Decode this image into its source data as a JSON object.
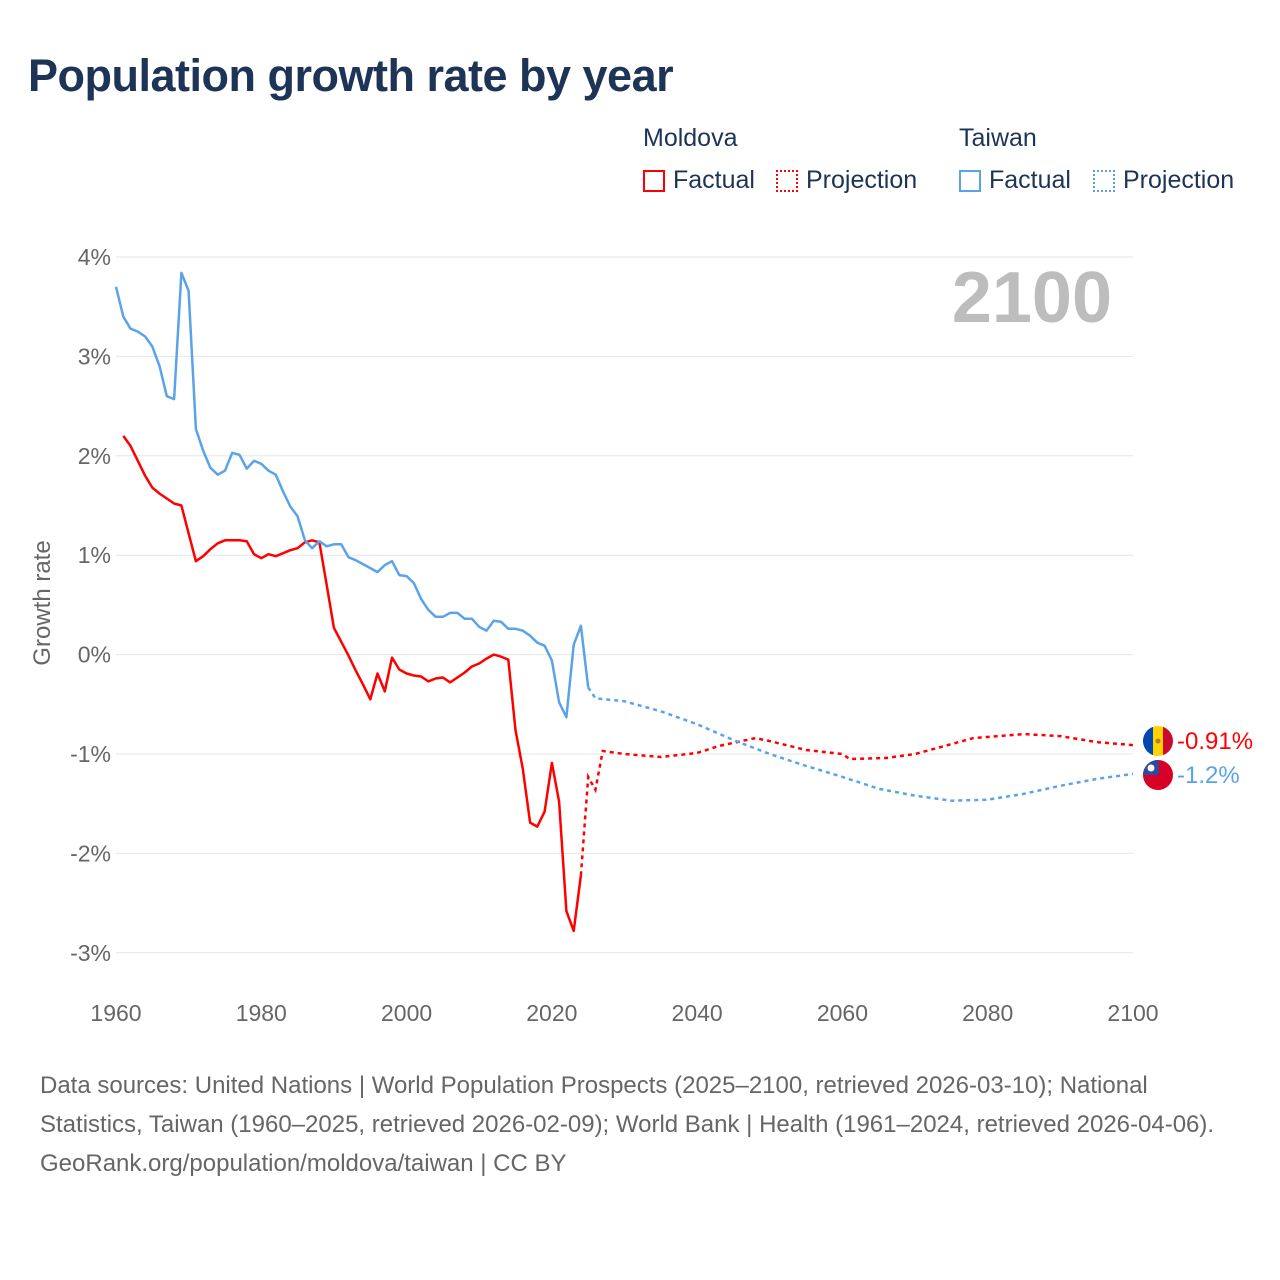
{
  "title": "Population growth rate by year",
  "legend": {
    "groups": [
      {
        "name": "Moldova",
        "color": "#ff0000",
        "factual": "Factual",
        "projection": "Projection"
      },
      {
        "name": "Taiwan",
        "color": "#5ba3e8",
        "factual": "Factual",
        "projection": "Projection"
      }
    ]
  },
  "footer": {
    "sources": "Data sources: United Nations | World Population Prospects (2025–2100, retrieved 2026-03-10); National Statistics, Taiwan (1960–2025, retrieved 2026-02-09); World Bank | Health (1961–2024, retrieved 2026-04-06).",
    "credit": "GeoRank.org/population/moldova/taiwan | CC BY"
  },
  "chart_data": {
    "type": "line",
    "title": "Population growth rate by year",
    "ylabel": "Growth rate",
    "xlabel": "",
    "year_watermark": "2100",
    "xlim": [
      1960,
      2100
    ],
    "ylim": [
      -3.3,
      4
    ],
    "xticks": [
      "1960",
      "1980",
      "2000",
      "2020",
      "2040",
      "2060",
      "2080",
      "2100"
    ],
    "yticks": [
      {
        "v": 4,
        "label": "4%"
      },
      {
        "v": 3,
        "label": "3%"
      },
      {
        "v": 2,
        "label": "2%"
      },
      {
        "v": 1,
        "label": "1%"
      },
      {
        "v": 0,
        "label": "0%"
      },
      {
        "v": -1,
        "label": "-1%"
      },
      {
        "v": -2,
        "label": "-2%"
      },
      {
        "v": -3,
        "label": "-3%"
      }
    ],
    "grid": true,
    "series": [
      {
        "name": "Moldova",
        "color": "#ff0000",
        "end_label": "-0.91%",
        "factual": [
          [
            1961,
            2.2
          ],
          [
            1962,
            2.1
          ],
          [
            1963,
            1.95
          ],
          [
            1964,
            1.8
          ],
          [
            1965,
            1.68
          ],
          [
            1966,
            1.62
          ],
          [
            1967,
            1.57
          ],
          [
            1968,
            1.52
          ],
          [
            1969,
            1.5
          ],
          [
            1970,
            1.22
          ],
          [
            1971,
            0.94
          ],
          [
            1972,
            0.99
          ],
          [
            1973,
            1.06
          ],
          [
            1974,
            1.12
          ],
          [
            1975,
            1.15
          ],
          [
            1976,
            1.15
          ],
          [
            1977,
            1.15
          ],
          [
            1978,
            1.14
          ],
          [
            1979,
            1.01
          ],
          [
            1980,
            0.97
          ],
          [
            1981,
            1.01
          ],
          [
            1982,
            0.99
          ],
          [
            1983,
            1.02
          ],
          [
            1984,
            1.05
          ],
          [
            1985,
            1.07
          ],
          [
            1986,
            1.13
          ],
          [
            1987,
            1.15
          ],
          [
            1988,
            1.13
          ],
          [
            1989,
            0.7
          ],
          [
            1990,
            0.27
          ],
          [
            1991,
            0.13
          ],
          [
            1992,
            -0.01
          ],
          [
            1993,
            -0.16
          ],
          [
            1994,
            -0.3
          ],
          [
            1995,
            -0.45
          ],
          [
            1996,
            -0.19
          ],
          [
            1997,
            -0.37
          ],
          [
            1998,
            -0.03
          ],
          [
            1999,
            -0.15
          ],
          [
            2000,
            -0.19
          ],
          [
            2001,
            -0.21
          ],
          [
            2002,
            -0.22
          ],
          [
            2003,
            -0.27
          ],
          [
            2004,
            -0.24
          ],
          [
            2005,
            -0.23
          ],
          [
            2006,
            -0.28
          ],
          [
            2007,
            -0.23
          ],
          [
            2008,
            -0.18
          ],
          [
            2009,
            -0.12
          ],
          [
            2010,
            -0.09
          ],
          [
            2011,
            -0.04
          ],
          [
            2012,
            0.0
          ],
          [
            2013,
            -0.02
          ],
          [
            2014,
            -0.05
          ],
          [
            2015,
            -0.76
          ],
          [
            2016,
            -1.15
          ],
          [
            2017,
            -1.69
          ],
          [
            2018,
            -1.73
          ],
          [
            2019,
            -1.58
          ],
          [
            2020,
            -1.09
          ],
          [
            2021,
            -1.48
          ],
          [
            2022,
            -2.58
          ],
          [
            2023,
            -2.78
          ],
          [
            2024,
            -2.22
          ]
        ],
        "projection": [
          [
            2024,
            -2.22
          ],
          [
            2025,
            -1.23
          ],
          [
            2026,
            -1.36
          ],
          [
            2027,
            -0.97
          ],
          [
            2030,
            -1.0
          ],
          [
            2035,
            -1.03
          ],
          [
            2040,
            -0.99
          ],
          [
            2043,
            -0.92
          ],
          [
            2048,
            -0.84
          ],
          [
            2050,
            -0.87
          ],
          [
            2055,
            -0.96
          ],
          [
            2060,
            -1.0
          ],
          [
            2061,
            -1.05
          ],
          [
            2066,
            -1.04
          ],
          [
            2070,
            -1.0
          ],
          [
            2075,
            -0.9
          ],
          [
            2078,
            -0.84
          ],
          [
            2085,
            -0.8
          ],
          [
            2090,
            -0.82
          ],
          [
            2095,
            -0.88
          ],
          [
            2100,
            -0.91
          ]
        ]
      },
      {
        "name": "Taiwan",
        "color": "#5ba3e8",
        "end_label": "-1.2%",
        "factual": [
          [
            1960,
            3.7
          ],
          [
            1961,
            3.4
          ],
          [
            1962,
            3.28
          ],
          [
            1963,
            3.25
          ],
          [
            1964,
            3.2
          ],
          [
            1965,
            3.1
          ],
          [
            1966,
            2.9
          ],
          [
            1967,
            2.6
          ],
          [
            1968,
            2.57
          ],
          [
            1969,
            3.84
          ],
          [
            1970,
            3.66
          ],
          [
            1971,
            2.27
          ],
          [
            1972,
            2.05
          ],
          [
            1973,
            1.88
          ],
          [
            1974,
            1.81
          ],
          [
            1975,
            1.85
          ],
          [
            1976,
            2.03
          ],
          [
            1977,
            2.01
          ],
          [
            1978,
            1.87
          ],
          [
            1979,
            1.95
          ],
          [
            1980,
            1.92
          ],
          [
            1981,
            1.85
          ],
          [
            1982,
            1.81
          ],
          [
            1983,
            1.64
          ],
          [
            1984,
            1.49
          ],
          [
            1985,
            1.39
          ],
          [
            1986,
            1.15
          ],
          [
            1987,
            1.07
          ],
          [
            1988,
            1.14
          ],
          [
            1989,
            1.09
          ],
          [
            1990,
            1.11
          ],
          [
            1991,
            1.11
          ],
          [
            1992,
            0.98
          ],
          [
            1993,
            0.95
          ],
          [
            1994,
            0.91
          ],
          [
            1995,
            0.87
          ],
          [
            1996,
            0.83
          ],
          [
            1997,
            0.9
          ],
          [
            1998,
            0.94
          ],
          [
            1999,
            0.8
          ],
          [
            2000,
            0.79
          ],
          [
            2001,
            0.72
          ],
          [
            2002,
            0.56
          ],
          [
            2003,
            0.45
          ],
          [
            2004,
            0.38
          ],
          [
            2005,
            0.38
          ],
          [
            2006,
            0.42
          ],
          [
            2007,
            0.42
          ],
          [
            2008,
            0.36
          ],
          [
            2009,
            0.36
          ],
          [
            2010,
            0.28
          ],
          [
            2011,
            0.24
          ],
          [
            2012,
            0.34
          ],
          [
            2013,
            0.33
          ],
          [
            2014,
            0.26
          ],
          [
            2015,
            0.26
          ],
          [
            2016,
            0.24
          ],
          [
            2017,
            0.19
          ],
          [
            2018,
            0.12
          ],
          [
            2019,
            0.09
          ],
          [
            2020,
            -0.06
          ],
          [
            2021,
            -0.48
          ],
          [
            2022,
            -0.63
          ],
          [
            2023,
            0.1
          ],
          [
            2024,
            0.29
          ],
          [
            2025,
            -0.33
          ]
        ],
        "projection": [
          [
            2025,
            -0.33
          ],
          [
            2026,
            -0.44
          ],
          [
            2030,
            -0.47
          ],
          [
            2035,
            -0.57
          ],
          [
            2040,
            -0.7
          ],
          [
            2045,
            -0.86
          ],
          [
            2050,
            -1.0
          ],
          [
            2055,
            -1.12
          ],
          [
            2060,
            -1.23
          ],
          [
            2065,
            -1.35
          ],
          [
            2070,
            -1.42
          ],
          [
            2075,
            -1.47
          ],
          [
            2080,
            -1.46
          ],
          [
            2085,
            -1.4
          ],
          [
            2090,
            -1.32
          ],
          [
            2095,
            -1.25
          ],
          [
            2100,
            -1.2
          ]
        ]
      }
    ]
  }
}
